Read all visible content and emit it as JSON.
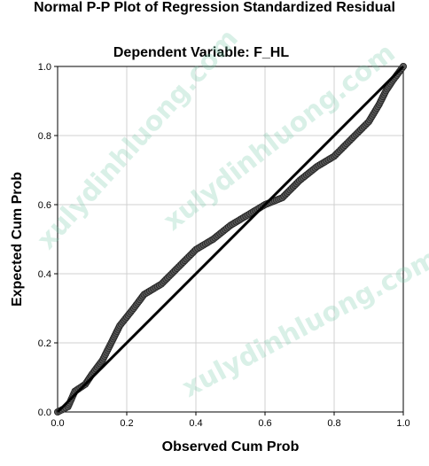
{
  "chart_data": {
    "type": "scatter",
    "title": "Normal P-P Plot of Regression Standardized Residual",
    "subtitle": "Dependent Variable: F_HL",
    "xlabel": "Observed Cum Prob",
    "ylabel": "Expected Cum Prob",
    "xlim": [
      0.0,
      1.0
    ],
    "ylim": [
      0.0,
      1.0
    ],
    "xticks": [
      "0.0",
      "0.2",
      "0.4",
      "0.6",
      "0.8",
      "1.0"
    ],
    "yticks": [
      "0.0",
      "0.2",
      "0.4",
      "0.6",
      "0.8",
      "1.0"
    ],
    "grid": true,
    "reference_line": [
      [
        0,
        0
      ],
      [
        1,
        1
      ]
    ],
    "curve_points": [
      [
        0.0,
        0.0
      ],
      [
        0.03,
        0.015
      ],
      [
        0.05,
        0.06
      ],
      [
        0.08,
        0.08
      ],
      [
        0.1,
        0.11
      ],
      [
        0.13,
        0.15
      ],
      [
        0.15,
        0.19
      ],
      [
        0.18,
        0.25
      ],
      [
        0.22,
        0.3
      ],
      [
        0.25,
        0.34
      ],
      [
        0.3,
        0.37
      ],
      [
        0.35,
        0.42
      ],
      [
        0.4,
        0.47
      ],
      [
        0.45,
        0.5
      ],
      [
        0.5,
        0.54
      ],
      [
        0.55,
        0.57
      ],
      [
        0.6,
        0.6
      ],
      [
        0.65,
        0.62
      ],
      [
        0.7,
        0.67
      ],
      [
        0.75,
        0.71
      ],
      [
        0.8,
        0.74
      ],
      [
        0.85,
        0.79
      ],
      [
        0.9,
        0.84
      ],
      [
        0.93,
        0.89
      ],
      [
        0.95,
        0.93
      ],
      [
        0.97,
        0.96
      ],
      [
        1.0,
        1.0
      ]
    ],
    "colors": {
      "points": "#5a5a5a",
      "point_stroke": "#222222",
      "line": "#000000",
      "grid": "#d0d0d0"
    }
  },
  "watermarks": [
    "xulydinhluong.com",
    "xulydinhluong.com",
    "xulydinhluong.com"
  ]
}
